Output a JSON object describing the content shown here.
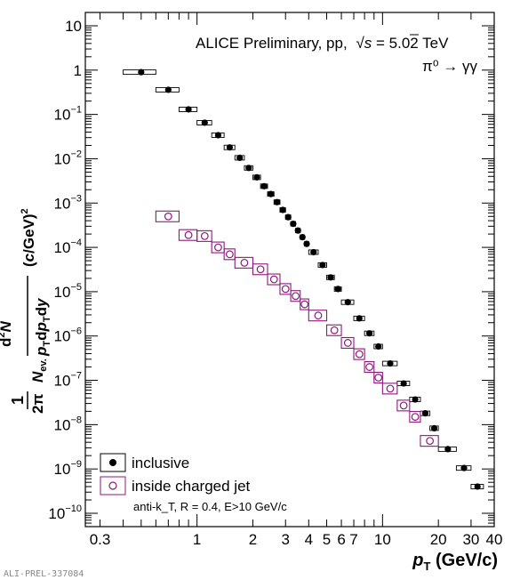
{
  "chart_data": {
    "type": "scatter",
    "experiment": "ALICE Preliminary, pp,",
    "energy_symbol": "s",
    "energy_value": " = 5.02 TeV",
    "process": "π⁰ → γγ",
    "ylabel": "1/(2π N_ev.) d²N/(p_T dp_T dy) (c/GeV)²",
    "xlabel_main": "p",
    "xlabel_sub": "T",
    "xlabel_unit": " (GeV/c)",
    "x_scale": "log",
    "y_scale": "log",
    "xlim": [
      0.25,
      40
    ],
    "ylim": [
      5e-11,
      20
    ],
    "x_ticks": [
      {
        "v": 0.3,
        "label": "0.3"
      },
      {
        "v": 1,
        "label": "1"
      },
      {
        "v": 2,
        "label": "2"
      },
      {
        "v": 3,
        "label": "3"
      },
      {
        "v": 4,
        "label": "4"
      },
      {
        "v": 5,
        "label": "5"
      },
      {
        "v": 6,
        "label": "6"
      },
      {
        "v": 7,
        "label": "7"
      },
      {
        "v": 10,
        "label": "10"
      },
      {
        "v": 20,
        "label": "20"
      },
      {
        "v": 30,
        "label": "30"
      },
      {
        "v": 40,
        "label": "40"
      }
    ],
    "y_ticks": [
      {
        "v": 10,
        "base": "10",
        "exp": ""
      },
      {
        "v": 1,
        "base": "1",
        "exp": ""
      },
      {
        "v": 0.1,
        "base": "10",
        "exp": "−1"
      },
      {
        "v": 0.01,
        "base": "10",
        "exp": "−2"
      },
      {
        "v": 0.001,
        "base": "10",
        "exp": "−3"
      },
      {
        "v": 0.0001,
        "base": "10",
        "exp": "−4"
      },
      {
        "v": 1e-05,
        "base": "10",
        "exp": "−5"
      },
      {
        "v": 1e-06,
        "base": "10",
        "exp": "−6"
      },
      {
        "v": 1e-07,
        "base": "10",
        "exp": "−7"
      },
      {
        "v": 1e-08,
        "base": "10",
        "exp": "−8"
      },
      {
        "v": 1e-09,
        "base": "10",
        "exp": "−9"
      },
      {
        "v": 1e-10,
        "base": "10",
        "exp": "−10"
      }
    ],
    "legend": {
      "placement": "bottom-left",
      "entries": [
        "inclusive",
        "inside charged jet"
      ],
      "note": "anti-k_T, R = 0.4, E>10 GeV/c"
    },
    "series": [
      {
        "name": "inclusive",
        "color": "#000000",
        "marker": "filled-circle",
        "points": [
          {
            "x": 0.5,
            "y": 0.9,
            "xlo": 0.4,
            "xhi": 0.6
          },
          {
            "x": 0.7,
            "y": 0.36,
            "xlo": 0.6,
            "xhi": 0.8
          },
          {
            "x": 0.9,
            "y": 0.13,
            "xlo": 0.8,
            "xhi": 1.0
          },
          {
            "x": 1.1,
            "y": 0.065,
            "xlo": 1.0,
            "xhi": 1.2
          },
          {
            "x": 1.3,
            "y": 0.034,
            "xlo": 1.2,
            "xhi": 1.4
          },
          {
            "x": 1.5,
            "y": 0.018,
            "xlo": 1.4,
            "xhi": 1.6
          },
          {
            "x": 1.7,
            "y": 0.0105,
            "xlo": 1.6,
            "xhi": 1.8
          },
          {
            "x": 1.9,
            "y": 0.0062,
            "xlo": 1.8,
            "xhi": 2.0
          },
          {
            "x": 2.1,
            "y": 0.0038,
            "xlo": 2.0,
            "xhi": 2.2
          },
          {
            "x": 2.3,
            "y": 0.0024,
            "xlo": 2.2,
            "xhi": 2.4
          },
          {
            "x": 2.5,
            "y": 0.0016,
            "xlo": 2.4,
            "xhi": 2.6
          },
          {
            "x": 2.7,
            "y": 0.00105,
            "xlo": 2.6,
            "xhi": 2.8
          },
          {
            "x": 2.9,
            "y": 0.0007,
            "xlo": 2.8,
            "xhi": 3.0
          },
          {
            "x": 3.1,
            "y": 0.00048,
            "xlo": 3.0,
            "xhi": 3.2
          },
          {
            "x": 3.3,
            "y": 0.00034,
            "xlo": 3.2,
            "xhi": 3.4
          },
          {
            "x": 3.5,
            "y": 0.00024,
            "xlo": 3.4,
            "xhi": 3.6
          },
          {
            "x": 3.7,
            "y": 0.00017,
            "xlo": 3.6,
            "xhi": 3.8
          },
          {
            "x": 3.9,
            "y": 0.00012,
            "xlo": 3.8,
            "xhi": 4.0
          },
          {
            "x": 4.25,
            "y": 7.8e-05,
            "xlo": 4.0,
            "xhi": 4.5
          },
          {
            "x": 4.75,
            "y": 4e-05,
            "xlo": 4.5,
            "xhi": 5.0
          },
          {
            "x": 5.25,
            "y": 2.1e-05,
            "xlo": 5.0,
            "xhi": 5.5
          },
          {
            "x": 5.75,
            "y": 1.15e-05,
            "xlo": 5.5,
            "xhi": 6.0
          },
          {
            "x": 6.5,
            "y": 5.8e-06,
            "xlo": 6.0,
            "xhi": 7.0
          },
          {
            "x": 7.5,
            "y": 2.5e-06,
            "xlo": 7.0,
            "xhi": 8.0
          },
          {
            "x": 8.5,
            "y": 1.15e-06,
            "xlo": 8.0,
            "xhi": 9.0
          },
          {
            "x": 9.5,
            "y": 5.8e-07,
            "xlo": 9.0,
            "xhi": 10.0
          },
          {
            "x": 11.0,
            "y": 2.4e-07,
            "xlo": 10.0,
            "xhi": 12.0
          },
          {
            "x": 13.0,
            "y": 8.5e-08,
            "xlo": 12.0,
            "xhi": 14.0
          },
          {
            "x": 15.0,
            "y": 3.7e-08,
            "xlo": 14.0,
            "xhi": 16.0
          },
          {
            "x": 17.0,
            "y": 1.8e-08,
            "xlo": 16.0,
            "xhi": 18.0
          },
          {
            "x": 19.0,
            "y": 8.3e-09,
            "xlo": 18.0,
            "xhi": 20.0
          },
          {
            "x": 22.5,
            "y": 2.8e-09,
            "xlo": 20.0,
            "xhi": 25.0
          },
          {
            "x": 27.5,
            "y": 1.05e-09,
            "xlo": 25.0,
            "xhi": 30.0
          },
          {
            "x": 32.5,
            "y": 4e-10,
            "xlo": 30.0,
            "xhi": 35.0
          }
        ]
      },
      {
        "name": "inside charged jet",
        "color": "#8b1a7a",
        "marker": "open-circle",
        "points": [
          {
            "x": 0.7,
            "y": 0.0005,
            "xlo": 0.6,
            "xhi": 0.8
          },
          {
            "x": 0.9,
            "y": 0.00019,
            "xlo": 0.8,
            "xhi": 1.0
          },
          {
            "x": 1.1,
            "y": 0.00018,
            "xlo": 1.0,
            "xhi": 1.2
          },
          {
            "x": 1.3,
            "y": 0.0001,
            "xlo": 1.2,
            "xhi": 1.4
          },
          {
            "x": 1.5,
            "y": 7e-05,
            "xlo": 1.4,
            "xhi": 1.6
          },
          {
            "x": 1.8,
            "y": 4.5e-05,
            "xlo": 1.6,
            "xhi": 2.0
          },
          {
            "x": 2.2,
            "y": 3.2e-05,
            "xlo": 2.0,
            "xhi": 2.4
          },
          {
            "x": 2.6,
            "y": 1.9e-05,
            "xlo": 2.4,
            "xhi": 2.8
          },
          {
            "x": 3.0,
            "y": 1.15e-05,
            "xlo": 2.8,
            "xhi": 3.2
          },
          {
            "x": 3.4,
            "y": 8e-06,
            "xlo": 3.2,
            "xhi": 3.6
          },
          {
            "x": 3.8,
            "y": 5.2e-06,
            "xlo": 3.6,
            "xhi": 4.0
          },
          {
            "x": 4.5,
            "y": 2.9e-06,
            "xlo": 4.0,
            "xhi": 5.0
          },
          {
            "x": 5.5,
            "y": 1.35e-06,
            "xlo": 5.0,
            "xhi": 6.0
          },
          {
            "x": 6.5,
            "y": 7e-07,
            "xlo": 6.0,
            "xhi": 7.0
          },
          {
            "x": 7.5,
            "y": 3.9e-07,
            "xlo": 7.0,
            "xhi": 8.0
          },
          {
            "x": 8.5,
            "y": 2e-07,
            "xlo": 8.0,
            "xhi": 9.0
          },
          {
            "x": 9.5,
            "y": 1.15e-07,
            "xlo": 9.0,
            "xhi": 10.0
          },
          {
            "x": 11.0,
            "y": 6.5e-08,
            "xlo": 10.0,
            "xhi": 12.0
          },
          {
            "x": 13.0,
            "y": 2.7e-08,
            "xlo": 12.0,
            "xhi": 14.0
          },
          {
            "x": 15.0,
            "y": 1.5e-08,
            "xlo": 14.0,
            "xhi": 16.0
          },
          {
            "x": 18.0,
            "y": 4.3e-09,
            "xlo": 16.0,
            "xhi": 20.0
          }
        ]
      }
    ]
  },
  "footer": {
    "id_label": "ALI-PREL-337084"
  }
}
